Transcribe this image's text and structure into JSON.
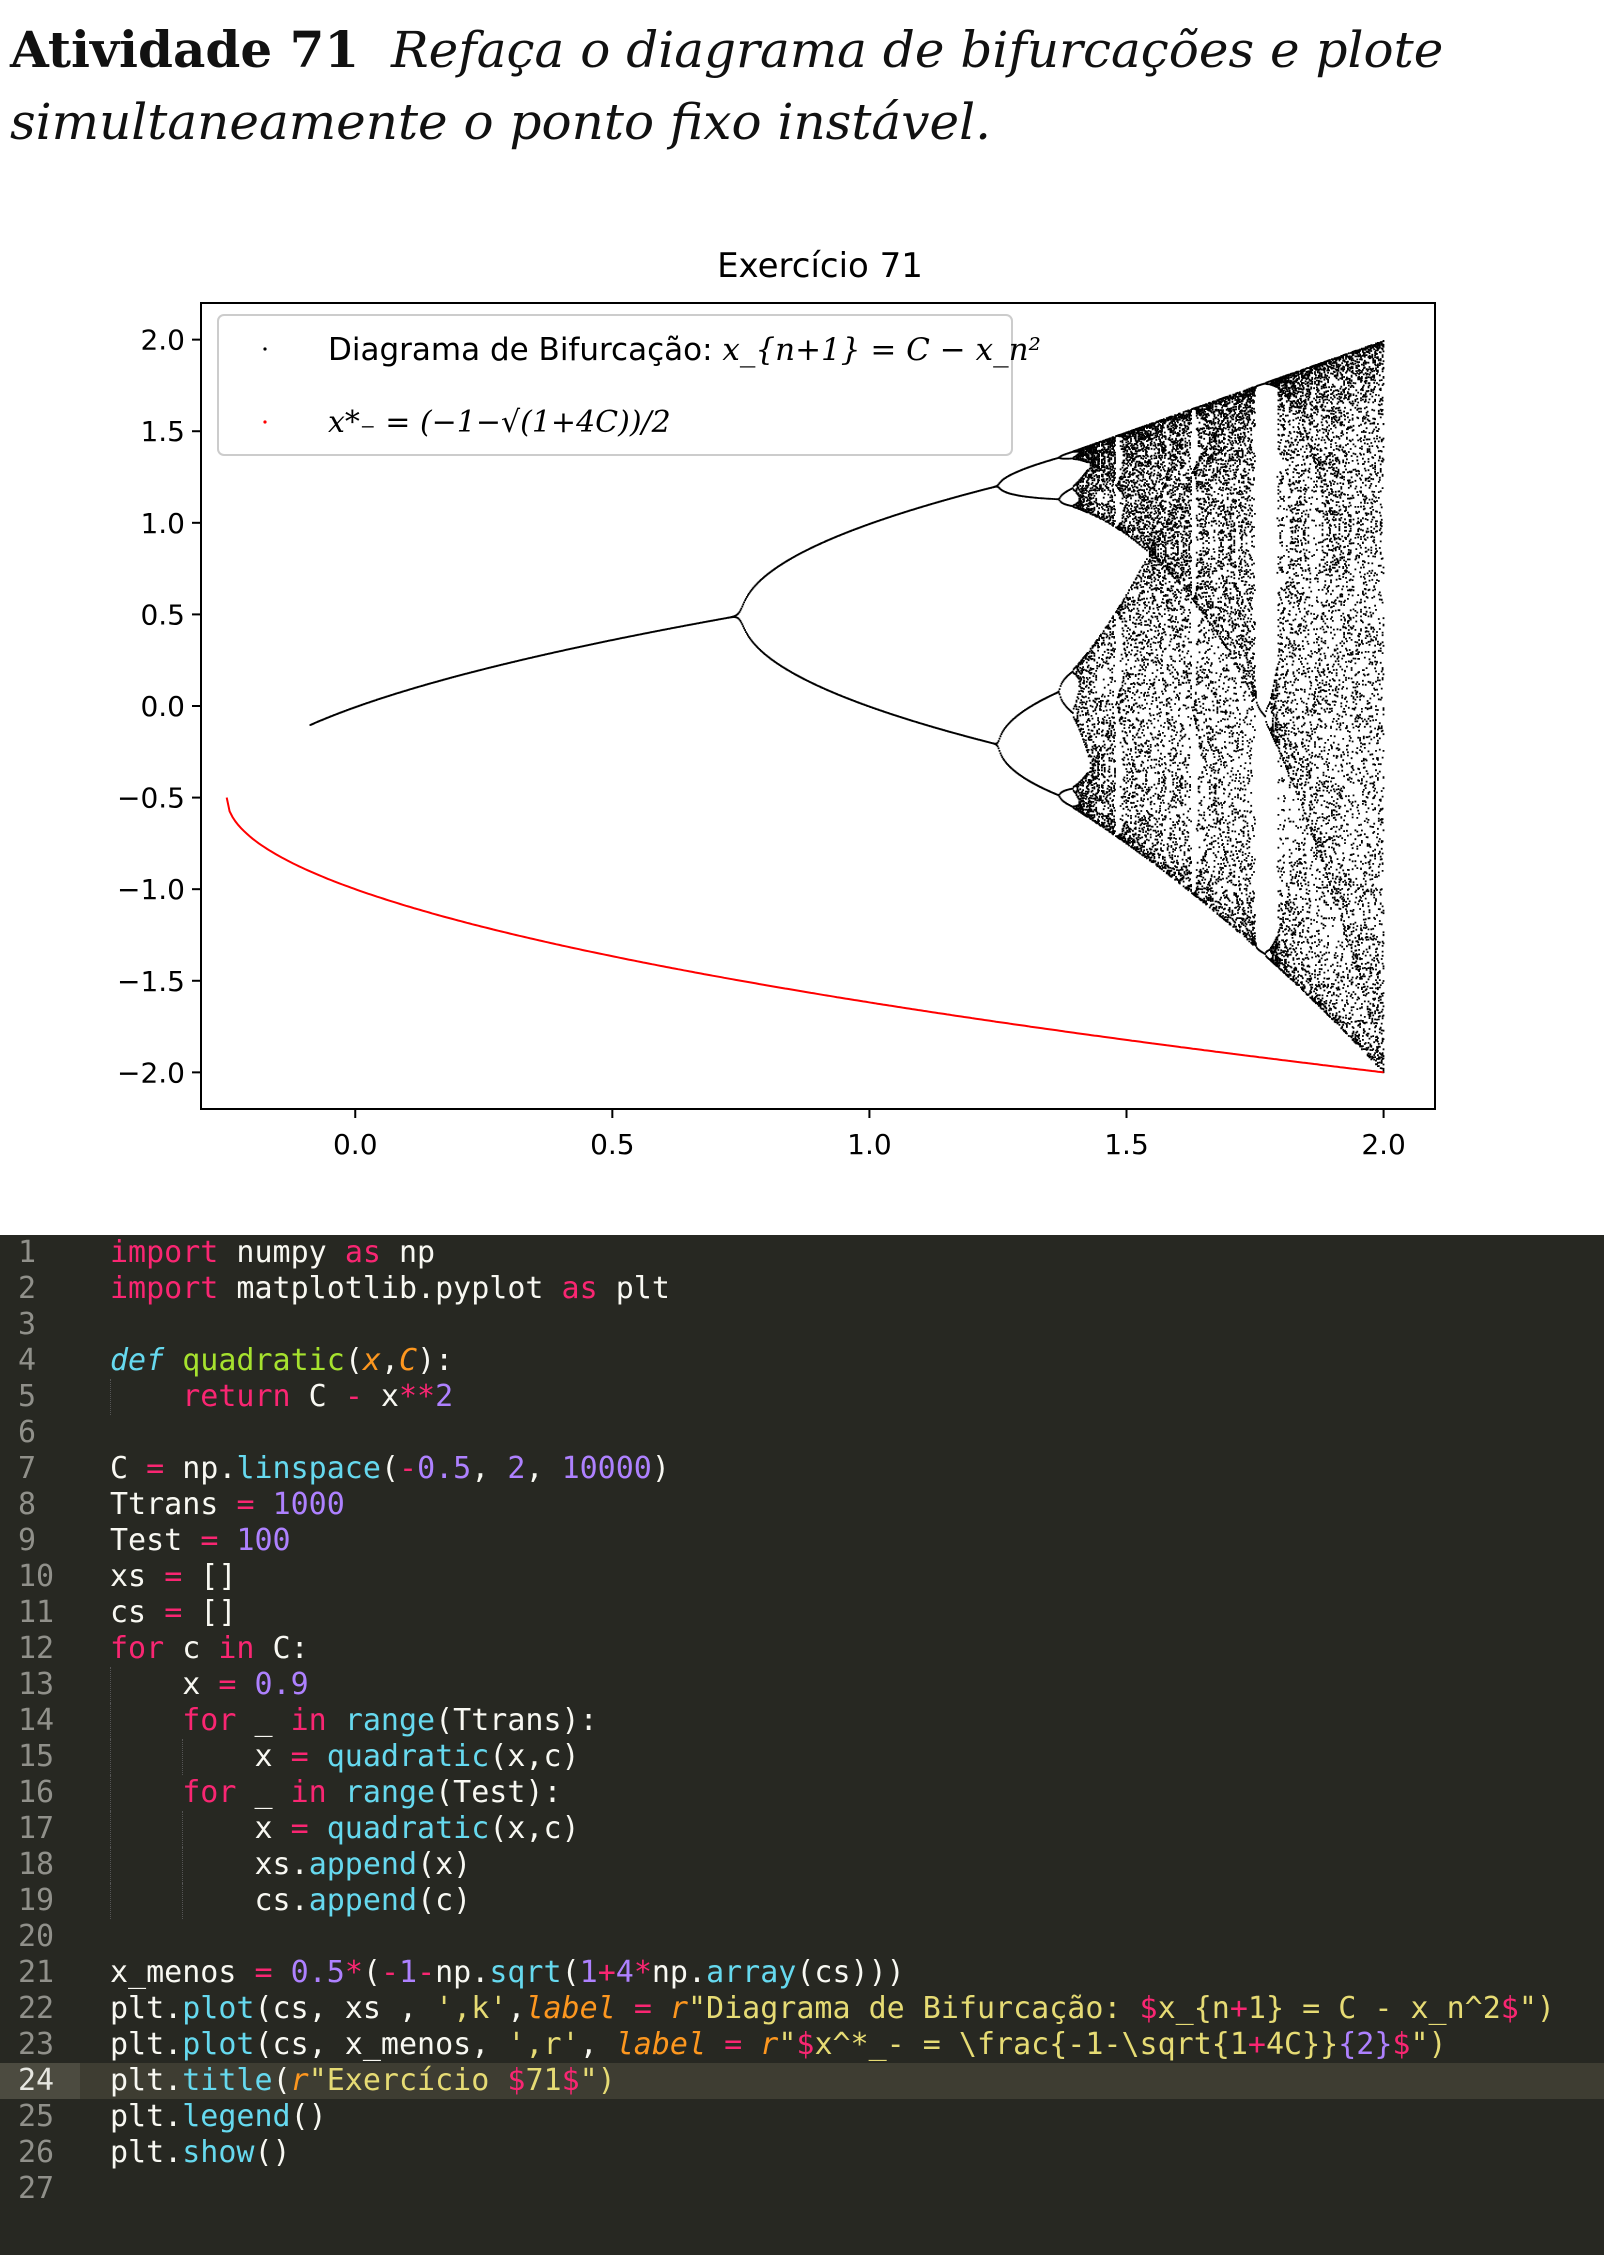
{
  "heading": {
    "label": "Atividade 71",
    "text": "Refaça o diagrama de bifurcações e plote simultaneamente o ponto fixo instável."
  },
  "chart_data": {
    "type": "scatter",
    "title": "Exercício 71",
    "xlabel": "",
    "ylabel": "",
    "xlim": [
      -0.3,
      2.1
    ],
    "ylim": [
      -2.2,
      2.2
    ],
    "xticks": [
      "0.0",
      "0.5",
      "1.0",
      "1.5",
      "2.0"
    ],
    "yticks": [
      "2.0",
      "1.5",
      "1.0",
      "0.5",
      "0.0",
      "−0.5",
      "−1.0",
      "−1.5",
      "−2.0"
    ],
    "grid": false,
    "legend_position": "top-left",
    "colors": {
      "bifurcation": "#000000",
      "fixed_point": "#ff0000"
    },
    "series": [
      {
        "name": "Diagrama de Bifurcação: x_{n+1} = C − x_n²",
        "color": "#000000",
        "description_points": [
          [
            -0.1,
            -0.1
          ],
          [
            0.75,
            0.5
          ],
          [
            1.25,
            1.2
          ],
          [
            1.25,
            -0.2
          ],
          [
            2.0,
            2.0
          ],
          [
            2.0,
            -2.0
          ]
        ]
      },
      {
        "name": "x*₋ = (−1 − √(1+4C))/2",
        "color": "#ff0000",
        "points": [
          [
            -0.25,
            -0.5
          ],
          [
            0.0,
            -1.0
          ],
          [
            0.5,
            -1.366
          ],
          [
            1.0,
            -1.618
          ],
          [
            1.5,
            -1.823
          ],
          [
            2.0,
            -2.0
          ]
        ]
      }
    ],
    "legend": {
      "entry1_prefix": "Diagrama de Bifurcação: ",
      "entry1_math": "x_{n+1} = C − x_n²",
      "entry2_math": "x*₋ = (−1−√(1+4C))/2"
    }
  },
  "editor": {
    "active_line": 24,
    "lines": [
      {
        "n": "1",
        "tokens": [
          {
            "t": "import",
            "c": "kw"
          },
          {
            "t": " numpy "
          },
          {
            "t": "as",
            "c": "kw"
          },
          {
            "t": " np"
          }
        ]
      },
      {
        "n": "2",
        "tokens": [
          {
            "t": "import",
            "c": "kw"
          },
          {
            "t": " matplotlib.pyplot "
          },
          {
            "t": "as",
            "c": "kw"
          },
          {
            "t": " plt"
          }
        ]
      },
      {
        "n": "3",
        "tokens": []
      },
      {
        "n": "4",
        "tokens": [
          {
            "t": "def",
            "c": "df"
          },
          {
            "t": " "
          },
          {
            "t": "quadratic",
            "c": "fn"
          },
          {
            "t": "("
          },
          {
            "t": "x",
            "c": "pr"
          },
          {
            "t": ","
          },
          {
            "t": "C",
            "c": "pr"
          },
          {
            "t": "):"
          }
        ]
      },
      {
        "n": "5",
        "indent": 1,
        "tokens": [
          {
            "t": "    "
          },
          {
            "t": "return",
            "c": "kw"
          },
          {
            "t": " C "
          },
          {
            "t": "-",
            "c": "kw"
          },
          {
            "t": " x"
          },
          {
            "t": "**",
            "c": "kw"
          },
          {
            "t": "2",
            "c": "nm"
          }
        ]
      },
      {
        "n": "6",
        "tokens": []
      },
      {
        "n": "7",
        "tokens": [
          {
            "t": "C "
          },
          {
            "t": "=",
            "c": "kw"
          },
          {
            "t": " np."
          },
          {
            "t": "linspace",
            "c": "bi"
          },
          {
            "t": "("
          },
          {
            "t": "-",
            "c": "kw"
          },
          {
            "t": "0.5",
            "c": "nm"
          },
          {
            "t": ", "
          },
          {
            "t": "2",
            "c": "nm"
          },
          {
            "t": ", "
          },
          {
            "t": "10000",
            "c": "nm"
          },
          {
            "t": ")"
          }
        ]
      },
      {
        "n": "8",
        "tokens": [
          {
            "t": "Ttrans "
          },
          {
            "t": "=",
            "c": "kw"
          },
          {
            "t": " "
          },
          {
            "t": "1000",
            "c": "nm"
          }
        ]
      },
      {
        "n": "9",
        "tokens": [
          {
            "t": "Test "
          },
          {
            "t": "=",
            "c": "kw"
          },
          {
            "t": " "
          },
          {
            "t": "100",
            "c": "nm"
          }
        ]
      },
      {
        "n": "10",
        "tokens": [
          {
            "t": "xs "
          },
          {
            "t": "=",
            "c": "kw"
          },
          {
            "t": " []"
          }
        ]
      },
      {
        "n": "11",
        "tokens": [
          {
            "t": "cs "
          },
          {
            "t": "=",
            "c": "kw"
          },
          {
            "t": " []"
          }
        ]
      },
      {
        "n": "12",
        "tokens": [
          {
            "t": "for",
            "c": "kw"
          },
          {
            "t": " c "
          },
          {
            "t": "in",
            "c": "kw"
          },
          {
            "t": " C:"
          }
        ]
      },
      {
        "n": "13",
        "indent": 1,
        "tokens": [
          {
            "t": "    x "
          },
          {
            "t": "=",
            "c": "kw"
          },
          {
            "t": " "
          },
          {
            "t": "0.9",
            "c": "nm"
          }
        ]
      },
      {
        "n": "14",
        "indent": 1,
        "tokens": [
          {
            "t": "    "
          },
          {
            "t": "for",
            "c": "kw"
          },
          {
            "t": " _ "
          },
          {
            "t": "in",
            "c": "kw"
          },
          {
            "t": " "
          },
          {
            "t": "range",
            "c": "bi"
          },
          {
            "t": "(Ttrans):"
          }
        ]
      },
      {
        "n": "15",
        "indent": 2,
        "tokens": [
          {
            "t": "        x "
          },
          {
            "t": "=",
            "c": "kw"
          },
          {
            "t": " "
          },
          {
            "t": "quadratic",
            "c": "bi"
          },
          {
            "t": "(x,c)"
          }
        ]
      },
      {
        "n": "16",
        "indent": 1,
        "tokens": [
          {
            "t": "    "
          },
          {
            "t": "for",
            "c": "kw"
          },
          {
            "t": " _ "
          },
          {
            "t": "in",
            "c": "kw"
          },
          {
            "t": " "
          },
          {
            "t": "range",
            "c": "bi"
          },
          {
            "t": "(Test):"
          }
        ]
      },
      {
        "n": "17",
        "indent": 2,
        "tokens": [
          {
            "t": "        x "
          },
          {
            "t": "=",
            "c": "kw"
          },
          {
            "t": " "
          },
          {
            "t": "quadratic",
            "c": "bi"
          },
          {
            "t": "(x,c)"
          }
        ]
      },
      {
        "n": "18",
        "indent": 2,
        "tokens": [
          {
            "t": "        xs."
          },
          {
            "t": "append",
            "c": "bi"
          },
          {
            "t": "(x)"
          }
        ]
      },
      {
        "n": "19",
        "indent": 2,
        "tokens": [
          {
            "t": "        cs."
          },
          {
            "t": "append",
            "c": "bi"
          },
          {
            "t": "(c)"
          }
        ]
      },
      {
        "n": "20",
        "tokens": []
      },
      {
        "n": "21",
        "tokens": [
          {
            "t": "x_menos "
          },
          {
            "t": "=",
            "c": "kw"
          },
          {
            "t": " "
          },
          {
            "t": "0.5",
            "c": "nm"
          },
          {
            "t": "*",
            "c": "kw"
          },
          {
            "t": "("
          },
          {
            "t": "-",
            "c": "kw"
          },
          {
            "t": "1",
            "c": "nm"
          },
          {
            "t": "-",
            "c": "kw"
          },
          {
            "t": "np."
          },
          {
            "t": "sqrt",
            "c": "bi"
          },
          {
            "t": "("
          },
          {
            "t": "1",
            "c": "nm"
          },
          {
            "t": "+",
            "c": "kw"
          },
          {
            "t": "4",
            "c": "nm"
          },
          {
            "t": "*",
            "c": "kw"
          },
          {
            "t": "np."
          },
          {
            "t": "array",
            "c": "bi"
          },
          {
            "t": "(cs)))"
          }
        ]
      },
      {
        "n": "22",
        "tokens": [
          {
            "t": "plt."
          },
          {
            "t": "plot",
            "c": "bi"
          },
          {
            "t": "(cs, xs , "
          },
          {
            "t": "',k'",
            "c": "st"
          },
          {
            "t": ","
          },
          {
            "t": "label",
            "c": "pr"
          },
          {
            "t": " "
          },
          {
            "t": "=",
            "c": "kw"
          },
          {
            "t": " "
          },
          {
            "t": "r",
            "c": "pr"
          },
          {
            "t": "\"Diagrama de Bifurcação: ",
            "c": "st"
          },
          {
            "t": "$",
            "c": "kw"
          },
          {
            "t": "x_{n",
            "c": "st"
          },
          {
            "t": "+",
            "c": "kw"
          },
          {
            "t": "1} = C - x_n^2",
            "c": "st"
          },
          {
            "t": "$",
            "c": "kw"
          },
          {
            "t": "\")",
            "c": "st"
          }
        ]
      },
      {
        "n": "23",
        "tokens": [
          {
            "t": "plt."
          },
          {
            "t": "plot",
            "c": "bi"
          },
          {
            "t": "(cs, x_menos, "
          },
          {
            "t": "',r'",
            "c": "st"
          },
          {
            "t": ", "
          },
          {
            "t": "label",
            "c": "pr"
          },
          {
            "t": " "
          },
          {
            "t": "=",
            "c": "kw"
          },
          {
            "t": " "
          },
          {
            "t": "r",
            "c": "pr"
          },
          {
            "t": "\"",
            "c": "st"
          },
          {
            "t": "$",
            "c": "kw"
          },
          {
            "t": "x^*_- = \\frac{-1-\\sqrt{1",
            "c": "st"
          },
          {
            "t": "+",
            "c": "kw"
          },
          {
            "t": "4C}}",
            "c": "st"
          },
          {
            "t": "{2}",
            "c": "nm"
          },
          {
            "t": "$",
            "c": "kw"
          },
          {
            "t": "\")",
            "c": "st"
          }
        ]
      },
      {
        "n": "24",
        "tokens": [
          {
            "t": "plt."
          },
          {
            "t": "title",
            "c": "bi"
          },
          {
            "t": "("
          },
          {
            "t": "r",
            "c": "pr"
          },
          {
            "t": "\"Exercício ",
            "c": "st"
          },
          {
            "t": "$",
            "c": "kw"
          },
          {
            "t": "71",
            "c": "st"
          },
          {
            "t": "$",
            "c": "kw"
          },
          {
            "t": "\")",
            "c": "st"
          }
        ]
      },
      {
        "n": "25",
        "tokens": [
          {
            "t": "plt."
          },
          {
            "t": "legend",
            "c": "bi"
          },
          {
            "t": "()"
          }
        ]
      },
      {
        "n": "26",
        "tokens": [
          {
            "t": "plt."
          },
          {
            "t": "show",
            "c": "bi"
          },
          {
            "t": "()"
          }
        ]
      },
      {
        "n": "27",
        "tokens": []
      }
    ]
  }
}
